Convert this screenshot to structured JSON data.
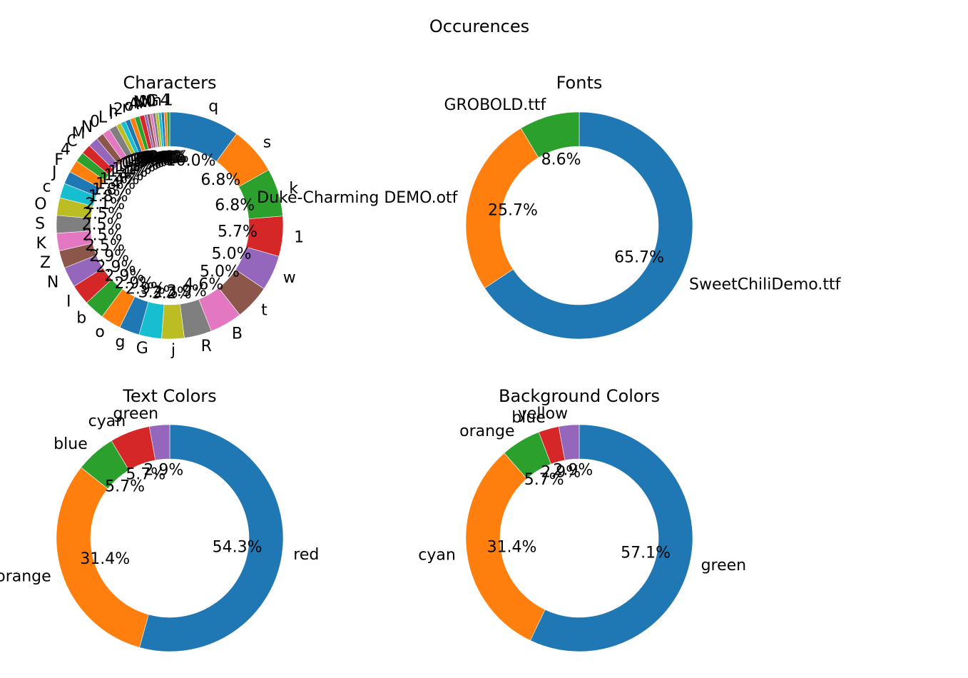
{
  "figure_title": "Occurences",
  "chart_data": [
    {
      "type": "pie",
      "title": "Characters",
      "labels": [
        "q",
        "s",
        "k",
        "1",
        "w",
        "t",
        "B",
        "R",
        "j",
        "G",
        "g",
        "o",
        "b",
        "I",
        "N",
        "Z",
        "K",
        "S",
        "O",
        "c",
        "J",
        "F",
        "4",
        "C",
        "M",
        "N",
        "0",
        "L",
        "i",
        "h",
        "2",
        "r",
        "o",
        "A",
        "h",
        "V",
        "W",
        "N",
        "0",
        "G",
        "n",
        "4",
        "1"
      ],
      "values": [
        10.0,
        6.8,
        6.8,
        5.7,
        5.0,
        5.0,
        4.6,
        3.9,
        3.2,
        3.2,
        2.9,
        2.9,
        2.9,
        2.9,
        2.9,
        2.5,
        2.5,
        2.5,
        2.5,
        2.1,
        1.8,
        1.8,
        1.4,
        1.4,
        1.4,
        1.1,
        1.1,
        1.1,
        0.7,
        0.7,
        0.7,
        0.7,
        0.7,
        0.7,
        0.4,
        0.4,
        0.4,
        0.4,
        0.4,
        0.4,
        0.4,
        0.4,
        0.4
      ],
      "value_format": "percent_1dp"
    },
    {
      "type": "pie",
      "title": "Fonts",
      "labels": [
        "SweetChiliDemo.ttf",
        "Duke-Charming DEMO.otf",
        "GROBOLD.ttf"
      ],
      "values": [
        65.7,
        25.7,
        8.6
      ],
      "value_format": "percent_1dp"
    },
    {
      "type": "pie",
      "title": "Text Colors",
      "labels": [
        "red",
        "orange",
        "blue",
        "cyan",
        "green"
      ],
      "values": [
        54.3,
        31.4,
        5.7,
        5.7,
        2.9
      ],
      "value_format": "percent_1dp"
    },
    {
      "type": "pie",
      "title": "Background Colors",
      "labels": [
        "green",
        "cyan",
        "orange",
        "blue",
        "yellow"
      ],
      "values": [
        57.1,
        31.4,
        5.7,
        2.9,
        2.9
      ],
      "value_format": "percent_1dp"
    }
  ],
  "palette": [
    "#1f77b4",
    "#ff7f0e",
    "#2ca02c",
    "#d62728",
    "#9467bd",
    "#8c564b",
    "#e377c2",
    "#7f7f7f",
    "#bcbd22",
    "#17becf"
  ],
  "style": {
    "wedge_edge": "#ffffff",
    "text_color": "#000000",
    "direction": "clockwise",
    "start_angle": "top",
    "donut": true,
    "grid": false,
    "legend": false
  }
}
